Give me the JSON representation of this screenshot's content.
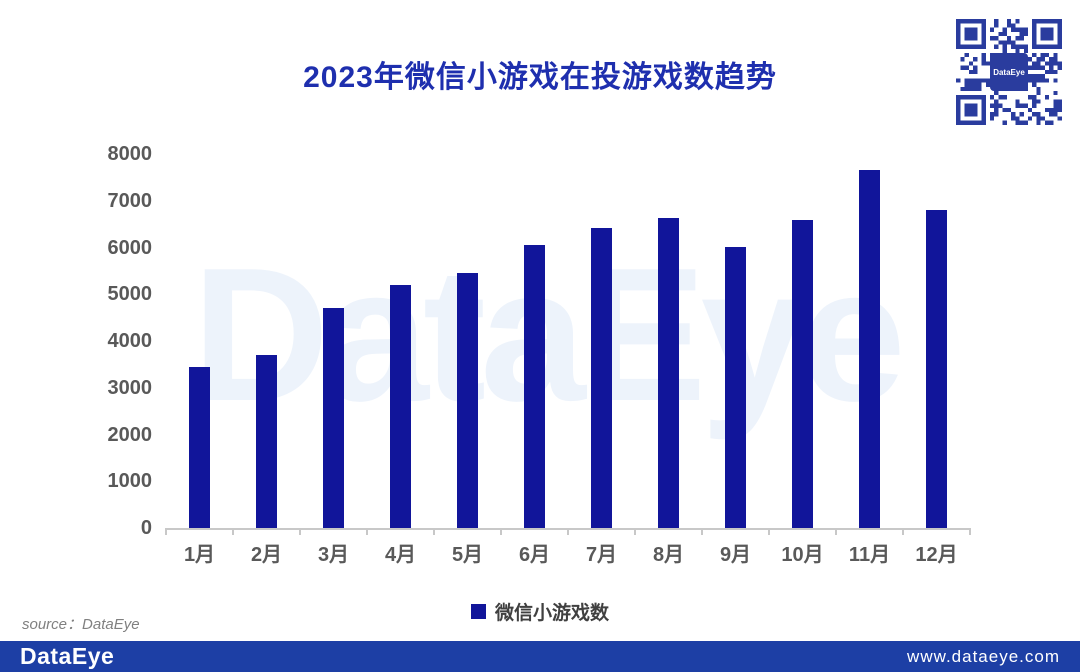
{
  "watermark": "DataEye",
  "qr": {
    "center_label": "DataEye"
  },
  "source_note": "source：DataEye",
  "footer": {
    "logo_text": "DataEye",
    "website": "www.dataeye.com"
  },
  "colors": {
    "bar": "#11159A",
    "title_text": "#1E2FAE",
    "footer_bar": "#1D3FA5",
    "qr": "#2A3C9E",
    "watermark": "#EDF3FB",
    "axis_text": "#595959",
    "axis_line": "#C8C8C8",
    "legend_text": "#404040",
    "source_text": "#808080"
  },
  "chart_data": {
    "type": "bar",
    "title": "2023年微信小游戏在投游戏数趋势",
    "categories": [
      "1月",
      "2月",
      "3月",
      "4月",
      "5月",
      "6月",
      "7月",
      "8月",
      "9月",
      "10月",
      "11月",
      "12月"
    ],
    "series": [
      {
        "name": "微信小游戏数",
        "values": [
          3450,
          3700,
          4700,
          5200,
          5450,
          6050,
          6420,
          6630,
          6010,
          6590,
          7650,
          6800
        ]
      }
    ],
    "xlabel": "",
    "ylabel": "",
    "ylim": [
      0,
      8000
    ],
    "yticks": [
      0,
      1000,
      2000,
      3000,
      4000,
      5000,
      6000,
      7000,
      8000
    ],
    "grid": false,
    "legend_position": "bottom"
  }
}
